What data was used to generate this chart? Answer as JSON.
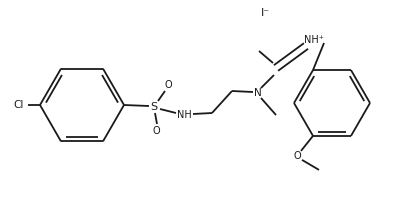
{
  "bg_color": "#ffffff",
  "line_color": "#1a1a1a",
  "lw": 1.3,
  "fs": 7.0,
  "iodide": "I⁻",
  "nh_plus": "NH⁺",
  "n_lbl": "N",
  "cl_lbl": "Cl",
  "s_lbl": "S",
  "o_lbl": "O",
  "nh_lbl": "NH",
  "h_lbl": "H"
}
